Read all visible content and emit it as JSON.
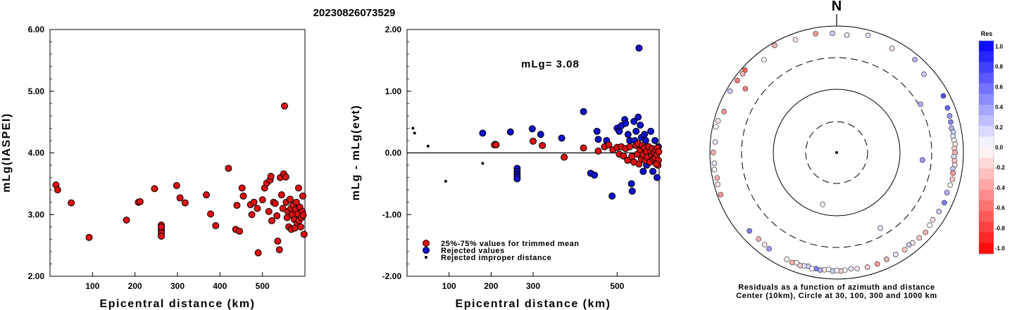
{
  "title": "20230826073529",
  "colors": {
    "red": "#dd1111",
    "blue": "#1111cc",
    "black": "#000000"
  },
  "chart_data": [
    {
      "type": "scatter",
      "name": "left",
      "xlabel": "Epicentral distance (km)",
      "ylabel": "mLg(IASPEI)",
      "xlim": [
        0,
        600
      ],
      "ylim": [
        2.0,
        6.0
      ],
      "xticks": [
        "100",
        "200",
        "300",
        "400",
        "500"
      ],
      "yticks": [
        "2.00",
        "3.00",
        "4.00",
        "5.00",
        "6.00"
      ],
      "points": [
        [
          14,
          3.48
        ],
        [
          18,
          3.4
        ],
        [
          50,
          3.19
        ],
        [
          92,
          2.63
        ],
        [
          180,
          2.91
        ],
        [
          208,
          3.2
        ],
        [
          212,
          3.21
        ],
        [
          246,
          3.42
        ],
        [
          262,
          2.83
        ],
        [
          262,
          2.78
        ],
        [
          262,
          2.74
        ],
        [
          262,
          2.7
        ],
        [
          262,
          2.65
        ],
        [
          262,
          2.8
        ],
        [
          298,
          3.47
        ],
        [
          306,
          3.27
        ],
        [
          318,
          3.19
        ],
        [
          368,
          3.32
        ],
        [
          378,
          3.01
        ],
        [
          390,
          2.82
        ],
        [
          420,
          3.75
        ],
        [
          437,
          2.76
        ],
        [
          446,
          2.73
        ],
        [
          440,
          3.15
        ],
        [
          452,
          3.43
        ],
        [
          455,
          3.3
        ],
        [
          472,
          3.16
        ],
        [
          475,
          3.0
        ],
        [
          480,
          3.2
        ],
        [
          488,
          3.1
        ],
        [
          490,
          2.38
        ],
        [
          500,
          3.24
        ],
        [
          505,
          3.43
        ],
        [
          510,
          3.51
        ],
        [
          515,
          3.05
        ],
        [
          518,
          3.56
        ],
        [
          520,
          3.62
        ],
        [
          522,
          2.9
        ],
        [
          526,
          3.2
        ],
        [
          530,
          3.18
        ],
        [
          534,
          2.98
        ],
        [
          536,
          2.57
        ],
        [
          540,
          2.43
        ],
        [
          542,
          3.6
        ],
        [
          545,
          3.32
        ],
        [
          548,
          3.1
        ],
        [
          550,
          3.66
        ],
        [
          552,
          4.76
        ],
        [
          555,
          3.61
        ],
        [
          556,
          3.2
        ],
        [
          558,
          2.95
        ],
        [
          560,
          3.05
        ],
        [
          562,
          2.8
        ],
        [
          565,
          3.25
        ],
        [
          567,
          3.1
        ],
        [
          568,
          2.76
        ],
        [
          570,
          3.0
        ],
        [
          572,
          3.15
        ],
        [
          575,
          2.92
        ],
        [
          578,
          3.08
        ],
        [
          580,
          3.2
        ],
        [
          582,
          2.86
        ],
        [
          584,
          3.01
        ],
        [
          586,
          2.9
        ],
        [
          588,
          3.12
        ],
        [
          590,
          2.8
        ],
        [
          592,
          2.95
        ],
        [
          594,
          3.05
        ],
        [
          596,
          2.99
        ],
        [
          598,
          2.68
        ],
        [
          595,
          3.3
        ],
        [
          585,
          3.43
        ],
        [
          576,
          2.78
        ]
      ]
    },
    {
      "type": "scatter",
      "name": "middle",
      "xlabel": "Epicentral distance (km)",
      "ylabel": "mLg - mLg(evt)",
      "annotation": "mLg= 3.08",
      "xlim": [
        0,
        600
      ],
      "ylim": [
        -2.0,
        2.0
      ],
      "xticks": [
        "100",
        "200",
        "300",
        "500"
      ],
      "yticks": [
        "-2.00",
        "-1.00",
        "0.00",
        "1.00",
        "2.00"
      ],
      "legend": [
        "25%-75% values for trimmed mean",
        "Rejected values",
        "Rejected improper distance"
      ],
      "series": [
        {
          "role": "trimmed",
          "points": [
            [
              208,
              0.13
            ],
            [
              212,
              0.13
            ],
            [
              300,
              0.19
            ],
            [
              322,
              0.12
            ],
            [
              374,
              -0.07
            ],
            [
              420,
              0.08
            ],
            [
              455,
              0.03
            ],
            [
              470,
              0.1
            ],
            [
              480,
              0.13
            ],
            [
              490,
              0.05
            ],
            [
              500,
              0.09
            ],
            [
              505,
              -0.02
            ],
            [
              510,
              0.1
            ],
            [
              515,
              -0.05
            ],
            [
              520,
              0.07
            ],
            [
              525,
              -0.12
            ],
            [
              530,
              0.1
            ],
            [
              535,
              -0.06
            ],
            [
              540,
              -0.15
            ],
            [
              545,
              0.12
            ],
            [
              548,
              -0.02
            ],
            [
              550,
              0.15
            ],
            [
              552,
              -0.18
            ],
            [
              555,
              0.05
            ],
            [
              558,
              -0.1
            ],
            [
              560,
              0.12
            ],
            [
              562,
              -0.03
            ],
            [
              565,
              0.08
            ],
            [
              567,
              -0.12
            ],
            [
              570,
              0.02
            ],
            [
              572,
              -0.07
            ],
            [
              575,
              0.1
            ],
            [
              578,
              -0.15
            ],
            [
              580,
              0.03
            ],
            [
              582,
              -0.05
            ],
            [
              584,
              0.07
            ],
            [
              586,
              -0.1
            ],
            [
              588,
              0.0
            ],
            [
              590,
              -0.08
            ],
            [
              592,
              0.05
            ],
            [
              594,
              -0.03
            ],
            [
              596,
              0.08
            ],
            [
              598,
              -0.12
            ],
            [
              599,
              0.02
            ],
            [
              597,
              -0.2
            ],
            [
              593,
              -0.18
            ]
          ]
        },
        {
          "role": "rejected",
          "points": [
            [
              180,
              0.32
            ],
            [
              210,
              0.14
            ],
            [
              246,
              0.34
            ],
            [
              262,
              -0.25
            ],
            [
              262,
              -0.3
            ],
            [
              262,
              -0.35
            ],
            [
              262,
              -0.38
            ],
            [
              262,
              -0.42
            ],
            [
              298,
              0.39
            ],
            [
              318,
              0.3
            ],
            [
              368,
              0.24
            ],
            [
              420,
              0.67
            ],
            [
              437,
              -0.33
            ],
            [
              446,
              -0.36
            ],
            [
              452,
              0.35
            ],
            [
              455,
              0.22
            ],
            [
              475,
              0.2
            ],
            [
              488,
              -0.7
            ],
            [
              500,
              0.4
            ],
            [
              505,
              0.35
            ],
            [
              510,
              0.44
            ],
            [
              518,
              0.54
            ],
            [
              520,
              0.48
            ],
            [
              526,
              0.3
            ],
            [
              530,
              0.2
            ],
            [
              534,
              -0.5
            ],
            [
              536,
              -0.62
            ],
            [
              540,
              0.51
            ],
            [
              542,
              0.2
            ],
            [
              545,
              0.35
            ],
            [
              550,
              0.58
            ],
            [
              552,
              1.7
            ],
            [
              555,
              0.45
            ],
            [
              558,
              0.25
            ],
            [
              562,
              -0.3
            ],
            [
              565,
              0.3
            ],
            [
              568,
              0.2
            ],
            [
              570,
              -0.2
            ],
            [
              575,
              -0.1
            ],
            [
              580,
              0.35
            ],
            [
              585,
              -0.3
            ],
            [
              590,
              0.2
            ],
            [
              595,
              -0.4
            ],
            [
              598,
              0.1
            ]
          ]
        },
        {
          "role": "improper",
          "points": [
            [
              14,
              0.4
            ],
            [
              18,
              0.32
            ],
            [
              50,
              0.11
            ],
            [
              92,
              -0.46
            ],
            [
              180,
              -0.17
            ]
          ]
        }
      ]
    },
    {
      "type": "scatter",
      "name": "polar",
      "title": "N",
      "caption": [
        "Residuals as a function of azimuth and distance",
        "Center (10km), Circle at 30, 100, 300 and 1000 km"
      ],
      "rings_km": [
        30,
        100,
        300,
        1000
      ],
      "colorbar_label": "Res",
      "colorbar_ticks": [
        "1.0",
        "0.8",
        "0.6",
        "0.4",
        "0.2",
        "0.0",
        "-0.2",
        "-0.4",
        "-0.6",
        "-0.8",
        "-1.0"
      ],
      "points": [
        [
          330,
          900,
          -0.3
        ],
        [
          340,
          780,
          -0.1
        ],
        [
          350,
          800,
          -0.4
        ],
        [
          358,
          760,
          0.2
        ],
        [
          5,
          720,
          0.1
        ],
        [
          15,
          820,
          0.1
        ],
        [
          28,
          720,
          -0.1
        ],
        [
          40,
          820,
          0.3
        ],
        [
          48,
          700,
          0.2
        ],
        [
          62,
          800,
          0.7
        ],
        [
          68,
          760,
          0.6
        ],
        [
          72,
          740,
          0.4
        ],
        [
          75,
          720,
          0.5
        ],
        [
          78,
          700,
          0.3
        ],
        [
          80,
          730,
          0.2
        ],
        [
          82,
          700,
          0.1
        ],
        [
          84,
          720,
          0.0
        ],
        [
          86,
          740,
          -0.1
        ],
        [
          88,
          710,
          -0.2
        ],
        [
          90,
          730,
          -0.3
        ],
        [
          92,
          700,
          0.1
        ],
        [
          94,
          720,
          -0.2
        ],
        [
          96,
          740,
          -0.1
        ],
        [
          98,
          700,
          0.2
        ],
        [
          100,
          720,
          -0.4
        ],
        [
          103,
          740,
          -0.2
        ],
        [
          106,
          720,
          0.0
        ],
        [
          110,
          700,
          0.3
        ],
        [
          115,
          740,
          0.5
        ],
        [
          120,
          720,
          0.2
        ],
        [
          125,
          700,
          -0.1
        ],
        [
          128,
          720,
          0.0
        ],
        [
          132,
          760,
          -0.3
        ],
        [
          136,
          740,
          -0.2
        ],
        [
          140,
          720,
          -0.1
        ],
        [
          142,
          700,
          0.2
        ],
        [
          145,
          740,
          -0.2
        ],
        [
          150,
          720,
          0.1
        ],
        [
          155,
          720,
          -0.3
        ],
        [
          160,
          740,
          -0.4
        ],
        [
          165,
          740,
          -0.2
        ],
        [
          170,
          720,
          -0.1
        ],
        [
          173,
          700,
          0.1
        ],
        [
          176,
          720,
          0.0
        ],
        [
          178,
          740,
          -0.2
        ],
        [
          180,
          720,
          0.0
        ],
        [
          182,
          740,
          0.2
        ],
        [
          184,
          700,
          0.0
        ],
        [
          186,
          720,
          -0.1
        ],
        [
          188,
          740,
          0.3
        ],
        [
          190,
          720,
          0.5
        ],
        [
          192,
          740,
          0.0
        ],
        [
          194,
          700,
          0.2
        ],
        [
          196,
          720,
          0.1
        ],
        [
          198,
          740,
          -0.2
        ],
        [
          200,
          700,
          0.0
        ],
        [
          202,
          740,
          -0.3
        ],
        [
          205,
          720,
          0.0
        ],
        [
          215,
          710,
          0.4
        ],
        [
          218,
          690,
          -0.1
        ],
        [
          222,
          680,
          -0.3
        ],
        [
          228,
          700,
          0.5
        ],
        [
          250,
          880,
          -0.4
        ],
        [
          255,
          870,
          -0.1
        ],
        [
          258,
          840,
          -0.3
        ],
        [
          262,
          880,
          0.0
        ],
        [
          265,
          860,
          0.1
        ],
        [
          270,
          880,
          -0.3
        ],
        [
          275,
          830,
          0.1
        ],
        [
          282,
          880,
          0.0
        ],
        [
          285,
          860,
          -0.1
        ],
        [
          290,
          770,
          -0.4
        ],
        [
          300,
          870,
          0.2
        ],
        [
          306,
          860,
          -0.5
        ],
        [
          312,
          880,
          -0.6
        ],
        [
          322,
          720,
          0.0
        ],
        [
          310,
          860,
          -0.3
        ],
        [
          305,
          560,
          -0.5
        ],
        [
          60,
          320,
          0.3
        ],
        [
          95,
          220,
          0.4
        ],
        [
          150,
          230,
          0.1
        ],
        [
          195,
          70,
          0.0
        ],
        [
          0,
          10,
          0.0
        ]
      ]
    }
  ]
}
